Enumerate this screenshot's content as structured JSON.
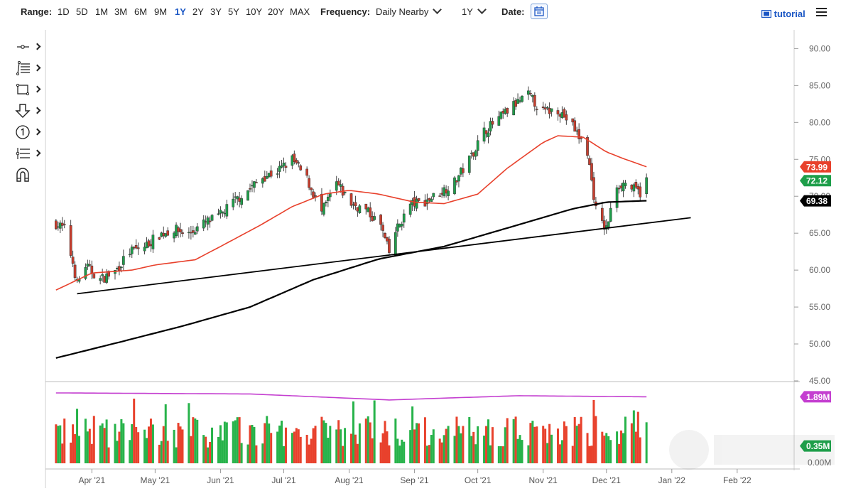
{
  "toolbar": {
    "range_label": "Range:",
    "ranges": [
      "1D",
      "5D",
      "1M",
      "3M",
      "6M",
      "9M",
      "1Y",
      "2Y",
      "3Y",
      "5Y",
      "10Y",
      "20Y",
      "MAX"
    ],
    "active_range": "1Y",
    "frequency_label": "Frequency:",
    "frequency_value": "Daily Nearby",
    "period_value": "1Y",
    "date_label": "Date:",
    "tutorial_label": "tutorial"
  },
  "side_tools": [
    "line-tool-icon",
    "fib-tool-icon",
    "rectangle-tool-icon",
    "arrow-tool-icon",
    "counter-tool-icon",
    "pitchfork-tool-icon",
    "magnet-icon"
  ],
  "colors": {
    "up_candle": "#1e9e4a",
    "down_candle": "#c73e2e",
    "ma50": "#e8412c",
    "ma200": "#000000",
    "trendline": "#000000",
    "volume_avg": "#c43fd0",
    "volume_up": "#27b34a",
    "volume_down": "#e8412c"
  },
  "chart_data": {
    "type": "candlestick",
    "price_axis": {
      "range": [
        45,
        91
      ],
      "ticks": [
        "90.00",
        "85.00",
        "80.00",
        "75.00",
        "70.00",
        "65.00",
        "60.00",
        "55.00",
        "50.00",
        "45.00"
      ]
    },
    "volume_axis": {
      "ticks": [
        "0.00M"
      ]
    },
    "x_axis": {
      "ticks": [
        "Apr '21",
        "May '21",
        "Jun '21",
        "Jul '21",
        "Aug '21",
        "Sep '21",
        "Oct '21",
        "Nov '21",
        "Dec '21",
        "Jan '22",
        "Feb '22"
      ]
    },
    "price_badges": [
      {
        "value": "73.99",
        "color": "#e8412c"
      },
      {
        "value": "72.12",
        "color": "#1e9e4a"
      },
      {
        "value": "69.38",
        "color": "#000000"
      }
    ],
    "volume_badges": [
      {
        "value": "1.89M",
        "color": "#c43fd0"
      },
      {
        "value": "0.35M",
        "color": "#1e9e4a"
      }
    ],
    "close_path": [
      [
        "Mar 15 '21",
        66.3
      ],
      [
        "Mar 19 '21",
        65.6
      ],
      [
        "Mar 23 '21",
        61.0
      ],
      [
        "Mar 25 '21",
        58.2
      ],
      [
        "Mar 29 '21",
        60.6
      ],
      [
        "Apr 5 '21",
        58.7
      ],
      [
        "Apr 12 '21",
        59.8
      ],
      [
        "Apr 19 '21",
        62.5
      ],
      [
        "Apr 26 '21",
        63.2
      ],
      [
        "May 3 '21",
        64.8
      ],
      [
        "May 10 '21",
        65.5
      ],
      [
        "May 17 '21",
        64.9
      ],
      [
        "May 24 '21",
        66.3
      ],
      [
        "May 31 '21",
        67.2
      ],
      [
        "Jun 7 '21",
        69.2
      ],
      [
        "Jun 14 '21",
        70.8
      ],
      [
        "Jun 21 '21",
        72.6
      ],
      [
        "Jun 28 '21",
        73.4
      ],
      [
        "Jul 5 '21",
        75.0
      ],
      [
        "Jul 12 '21",
        72.3
      ],
      [
        "Jul 19 '21",
        67.8
      ],
      [
        "Jul 26 '21",
        71.7
      ],
      [
        "Aug 2 '21",
        69.0
      ],
      [
        "Aug 9 '21",
        68.1
      ],
      [
        "Aug 16 '21",
        66.0
      ],
      [
        "Aug 20 '21",
        62.3
      ],
      [
        "Aug 23 '21",
        65.2
      ],
      [
        "Aug 30 '21",
        68.9
      ],
      [
        "Sep 6 '21",
        69.3
      ],
      [
        "Sep 13 '21",
        70.5
      ],
      [
        "Sep 20 '21",
        71.9
      ],
      [
        "Sep 27 '21",
        75.0
      ],
      [
        "Oct 4 '21",
        78.8
      ],
      [
        "Oct 11 '21",
        80.5
      ],
      [
        "Oct 18 '21",
        82.3
      ],
      [
        "Oct 25 '21",
        83.7
      ],
      [
        "Nov 1 '21",
        81.4
      ],
      [
        "Nov 8 '21",
        81.8
      ],
      [
        "Nov 15 '21",
        79.5
      ],
      [
        "Nov 22 '21",
        76.0
      ],
      [
        "Nov 26 '21",
        68.2
      ],
      [
        "Nov 29 '21",
        66.2
      ],
      [
        "Dec 1 '21",
        65.6
      ],
      [
        "Dec 6 '21",
        71.5
      ],
      [
        "Dec 10 '21",
        71.8
      ],
      [
        "Dec 14 '21",
        70.9
      ],
      [
        "Dec 17 '21",
        70.5
      ],
      [
        "Dec 20 '21",
        72.1
      ]
    ],
    "ma50": [
      [
        "Mar 15 '21",
        57.3
      ],
      [
        "Apr 1 '21",
        59.6
      ],
      [
        "Apr 20 '21",
        60.0
      ],
      [
        "May 1 '21",
        60.7
      ],
      [
        "May 20 '21",
        61.4
      ],
      [
        "Jun 1 '21",
        63.2
      ],
      [
        "Jun 20 '21",
        66.1
      ],
      [
        "Jul 5 '21",
        68.6
      ],
      [
        "Jul 20 '21",
        70.3
      ],
      [
        "Aug 1 '21",
        70.8
      ],
      [
        "Aug 15 '21",
        70.3
      ],
      [
        "Sep 1 '21",
        69.2
      ],
      [
        "Sep 15 '21",
        69.0
      ],
      [
        "Oct 1 '21",
        70.3
      ],
      [
        "Oct 15 '21",
        73.8
      ],
      [
        "Nov 1 '21",
        77.3
      ],
      [
        "Nov 8 '21",
        78.2
      ],
      [
        "Nov 20 '21",
        78.0
      ],
      [
        "Dec 1 '21",
        76.0
      ],
      [
        "Dec 10 '21",
        75.0
      ],
      [
        "Dec 20 '21",
        74.0
      ]
    ],
    "ma200": [
      [
        "Mar 15 '21",
        48.1
      ],
      [
        "Apr 15 '21",
        50.3
      ],
      [
        "May 15 '21",
        52.5
      ],
      [
        "Jun 15 '21",
        55.0
      ],
      [
        "Jul 15 '21",
        58.7
      ],
      [
        "Aug 15 '21",
        61.5
      ],
      [
        "Sep 15 '21",
        63.2
      ],
      [
        "Oct 15 '21",
        65.7
      ],
      [
        "Nov 15 '21",
        68.3
      ],
      [
        "Dec 1 '21",
        69.2
      ],
      [
        "Dec 20 '21",
        69.4
      ]
    ],
    "trendline": [
      [
        "Mar 25 '21",
        56.8
      ],
      [
        "Jan 10 '22",
        67.1
      ]
    ],
    "volume_avg": [
      [
        "Mar 15 '21",
        2.0
      ],
      [
        "Jun 15 '21",
        1.97
      ],
      [
        "Aug 20 '21",
        1.8
      ],
      [
        "Oct 20 '21",
        1.92
      ],
      [
        "Dec 20 '21",
        1.89
      ]
    ]
  }
}
